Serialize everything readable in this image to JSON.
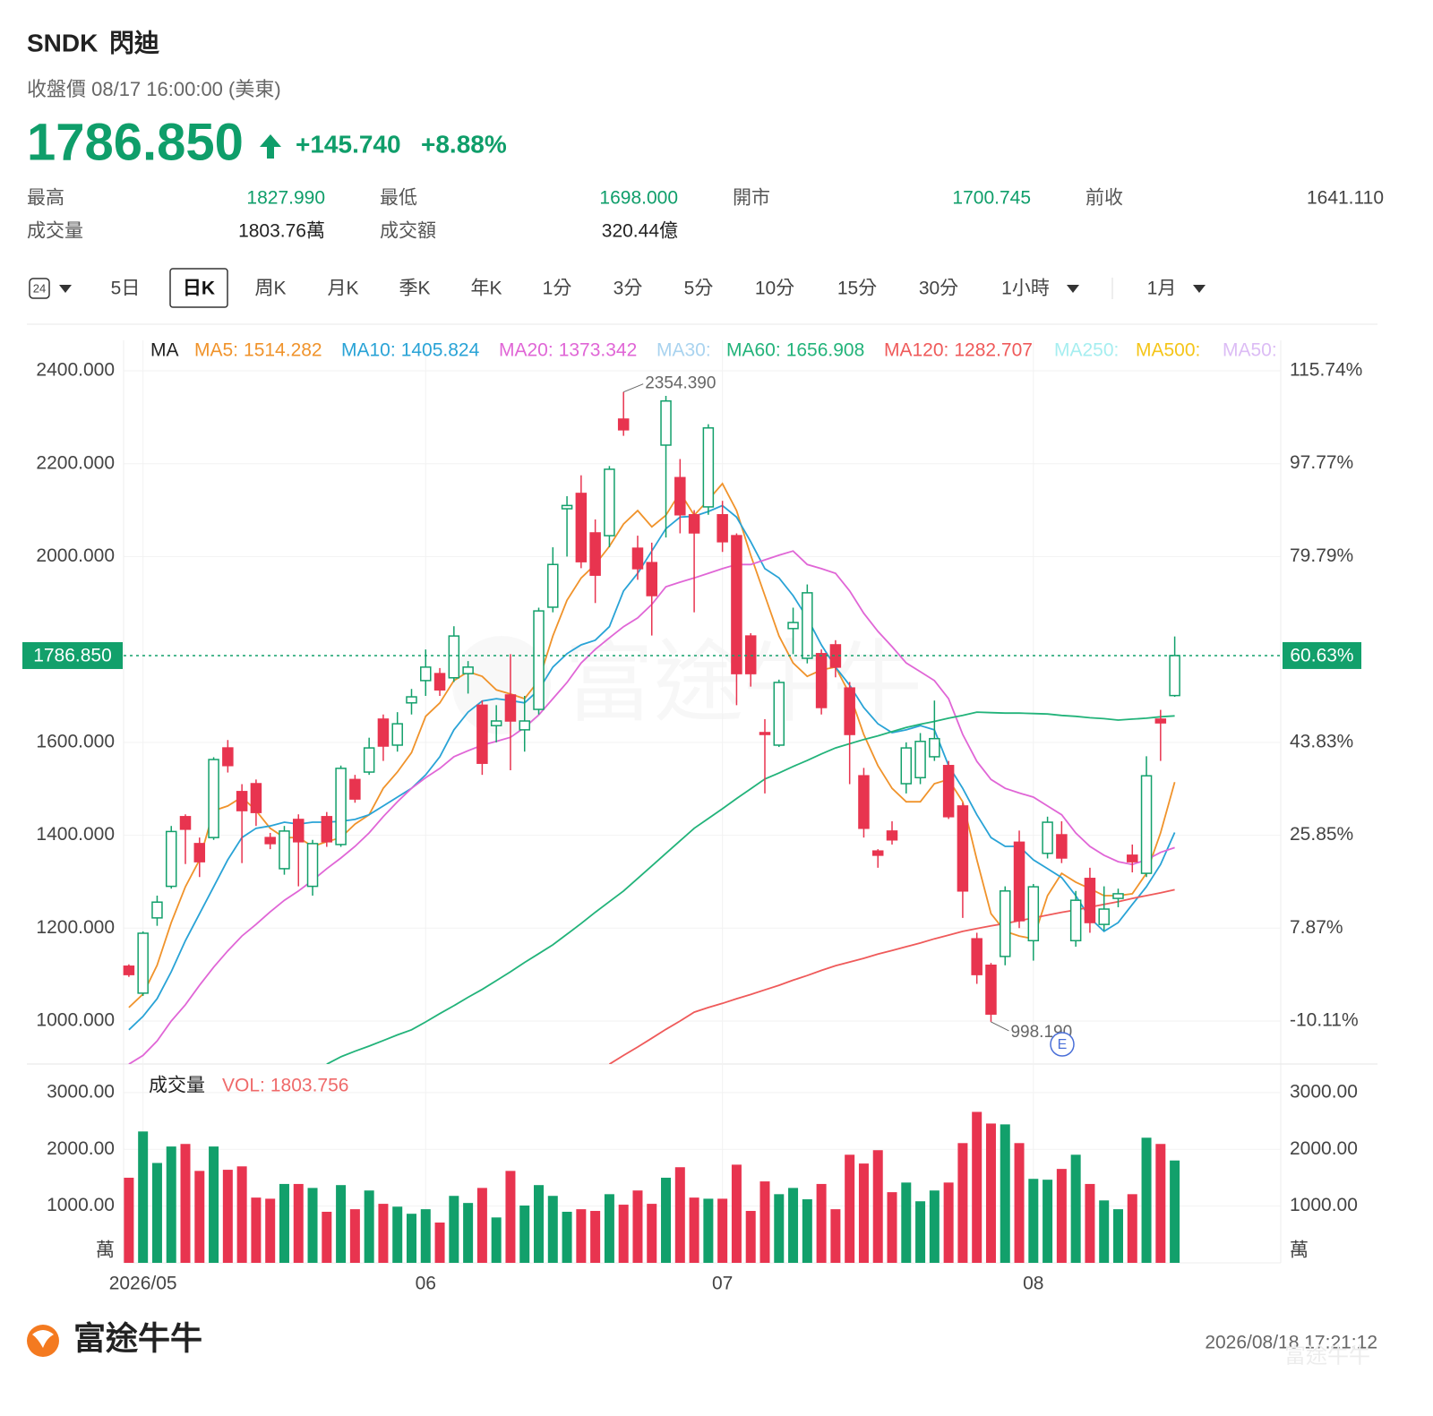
{
  "header": {
    "symbol": "SNDK",
    "name": "閃迪",
    "status": "收盤價 08/17 16:00:00 (美東)",
    "price": "1786.850",
    "change": "+145.740",
    "change_pct": "+8.88%",
    "stats": [
      {
        "label": "最高",
        "value": "1827.990"
      },
      {
        "label": "最低",
        "value": "1698.000"
      },
      {
        "label": "開市",
        "value": "1700.745"
      },
      {
        "label": "前收",
        "value": "1641.110"
      },
      {
        "label": "成交量",
        "value": "1803.76萬"
      },
      {
        "label": "成交額",
        "value": "320.44億"
      }
    ]
  },
  "tabs": {
    "items": [
      "24",
      "5日",
      "日K",
      "周K",
      "月K",
      "季K",
      "年K",
      "1分",
      "3分",
      "5分",
      "10分",
      "15分",
      "30分",
      "1小時",
      "1月"
    ],
    "active": "日K"
  },
  "watermark": "富途牛牛",
  "earnings_marker": "E",
  "footer": {
    "brand": "富途牛牛",
    "timestamp": "2026/08/18 17:21:12"
  },
  "chart_data": [
    {
      "type": "candlestick",
      "legend_title": "MA",
      "up_color": "#12a06b",
      "down_color": "#e8344f",
      "categories": [
        null,
        "2026/05",
        null,
        null,
        null,
        null,
        null,
        null,
        null,
        null,
        null,
        null,
        null,
        null,
        null,
        null,
        null,
        null,
        null,
        null,
        null,
        "06",
        null,
        null,
        null,
        null,
        null,
        null,
        null,
        null,
        null,
        null,
        null,
        null,
        null,
        null,
        null,
        null,
        null,
        null,
        null,
        null,
        "07",
        null,
        null,
        null,
        null,
        null,
        null,
        null,
        null,
        null,
        null,
        null,
        null,
        null,
        null,
        null,
        null,
        null,
        null,
        null,
        null,
        null,
        "08",
        null,
        null,
        null,
        null,
        null,
        null,
        null,
        null,
        null,
        null
      ],
      "open": [
        1118,
        1060,
        1222,
        1290,
        1440,
        1382,
        1395,
        1588,
        1494,
        1511,
        1395,
        1328,
        1434,
        1290,
        1440,
        1380,
        1520,
        1536,
        1650,
        1594,
        1685,
        1733,
        1748,
        1739,
        1748,
        1680,
        1636,
        1702,
        1627,
        1671,
        1891,
        2103,
        2136,
        2051,
        2045,
        2296,
        2018,
        1987,
        2240,
        2170,
        2090,
        2107,
        2090,
        2045,
        1829,
        1621,
        1594,
        1845,
        1781,
        1791,
        1810,
        1717,
        1528,
        1366,
        1409,
        1511,
        1524,
        1569,
        1550,
        1463,
        1177,
        1120,
        1139,
        1385,
        1173,
        1361,
        1401,
        1173,
        1307,
        1208,
        1264,
        1357,
        1318,
        1650,
        1700.745
      ],
      "high": [
        1122,
        1193,
        1270,
        1420,
        1445,
        1395,
        1568,
        1605,
        1510,
        1520,
        1405,
        1420,
        1445,
        1390,
        1450,
        1550,
        1530,
        1610,
        1660,
        1665,
        1715,
        1800,
        1760,
        1850,
        1775,
        1690,
        1680,
        1790,
        1700,
        1890,
        2020,
        2130,
        2175,
        2080,
        2195,
        2354.39,
        2045,
        2030,
        2346,
        2210,
        2100,
        2285,
        2120,
        2050,
        1835,
        1650,
        1735,
        1890,
        1940,
        1800,
        1820,
        1730,
        1545,
        1370,
        1430,
        1600,
        1620,
        1690,
        1560,
        1470,
        1190,
        1125,
        1290,
        1410,
        1295,
        1440,
        1430,
        1280,
        1330,
        1290,
        1285,
        1380,
        1570,
        1670,
        1827.99
      ],
      "low": [
        1095,
        1054,
        1205,
        1285,
        1338,
        1310,
        1390,
        1535,
        1340,
        1420,
        1370,
        1315,
        1290,
        1270,
        1375,
        1375,
        1470,
        1530,
        1560,
        1580,
        1660,
        1700,
        1700,
        1730,
        1705,
        1530,
        1600,
        1540,
        1580,
        1660,
        1880,
        2000,
        1975,
        1900,
        2020,
        2260,
        1950,
        1830,
        2041,
        2050,
        1880,
        2090,
        2010,
        1680,
        1720,
        1490,
        1590,
        1790,
        1770,
        1660,
        1740,
        1510,
        1395,
        1330,
        1380,
        1490,
        1510,
        1560,
        1435,
        1222,
        1080,
        998.19,
        1120,
        1200,
        1130,
        1350,
        1340,
        1160,
        1190,
        1195,
        1245,
        1320,
        1310,
        1560,
        1698
      ],
      "close": [
        1100,
        1189,
        1256,
        1408,
        1413,
        1343,
        1563,
        1550,
        1453,
        1449,
        1382,
        1409,
        1386,
        1382,
        1386,
        1544,
        1478,
        1588,
        1592,
        1640,
        1698,
        1762,
        1713,
        1829,
        1762,
        1555,
        1646,
        1646,
        1646,
        1883,
        1983,
        2110,
        1989,
        1960,
        2188,
        2273,
        1974,
        1916,
        2335,
        2090,
        2051,
        2277,
        2032,
        1748,
        1748,
        1617,
        1729,
        1858,
        1922,
        1675,
        1762,
        1617,
        1415,
        1357,
        1390,
        1588,
        1602,
        1608,
        1440,
        1280,
        1100,
        1015,
        1280,
        1216,
        1289,
        1428,
        1351,
        1260,
        1212,
        1241,
        1274,
        1343,
        1528,
        1642,
        1786.85
      ],
      "series": [
        {
          "name": "MA5:",
          "color": "#f0932b",
          "values": [
            1029,
            1058,
            1120,
            1212,
            1289,
            1347,
            1453,
            1463,
            1482,
            1453,
            1415,
            1395,
            1395,
            1376,
            1386,
            1395,
            1424,
            1444,
            1501,
            1536,
            1578,
            1656,
            1685,
            1733,
            1752,
            1742,
            1713,
            1704,
            1694,
            1733,
            1829,
            1906,
            1954,
            1983,
            2022,
            2070,
            2099,
            2064,
            2089,
            2138,
            2089,
            2122,
            2157,
            2099,
            2003,
            1916,
            1829,
            1771,
            1742,
            1756,
            1762,
            1704,
            1617,
            1550,
            1501,
            1472,
            1472,
            1511,
            1520,
            1472,
            1347,
            1231,
            1193,
            1183,
            1177,
            1270,
            1318,
            1299,
            1285,
            1270,
            1270,
            1274,
            1318,
            1405,
            1514.282
          ]
        },
        {
          "name": "MA10:",
          "color": "#29a3d6",
          "values": [
            981,
            1010,
            1048,
            1106,
            1173,
            1231,
            1289,
            1347,
            1395,
            1415,
            1420,
            1428,
            1424,
            1428,
            1428,
            1430,
            1434,
            1444,
            1463,
            1482,
            1501,
            1530,
            1569,
            1627,
            1665,
            1689,
            1694,
            1690,
            1685,
            1713,
            1762,
            1791,
            1810,
            1820,
            1849,
            1926,
            1964,
            2012,
            2060,
            2085,
            2087,
            2097,
            2110,
            2085,
            2032,
            1974,
            1954,
            1916,
            1868,
            1810,
            1762,
            1723,
            1675,
            1640,
            1621,
            1627,
            1636,
            1627,
            1550,
            1501,
            1444,
            1395,
            1376,
            1376,
            1347,
            1328,
            1309,
            1270,
            1222,
            1193,
            1212,
            1251,
            1289,
            1337,
            1405.824
          ]
        },
        {
          "name": "MA20:",
          "color": "#e066d6",
          "values": [
            907,
            926,
            957,
            1000,
            1035,
            1077,
            1116,
            1151,
            1183,
            1208,
            1235,
            1260,
            1280,
            1303,
            1328,
            1351,
            1376,
            1405,
            1440,
            1472,
            1501,
            1524,
            1544,
            1569,
            1582,
            1594,
            1602,
            1611,
            1632,
            1659,
            1694,
            1729,
            1771,
            1800,
            1825,
            1849,
            1868,
            1897,
            1935,
            1945,
            1954,
            1964,
            1974,
            1983,
            1983,
            1993,
            2003,
            2012,
            1983,
            1974,
            1964,
            1926,
            1878,
            1839,
            1806,
            1771,
            1752,
            1733,
            1694,
            1617,
            1559,
            1520,
            1501,
            1491,
            1482,
            1463,
            1444,
            1405,
            1376,
            1357,
            1343,
            1337,
            1347,
            1363,
            1373.342
          ]
        },
        {
          "name": "MA30:",
          "color": "#a9d3ef"
        },
        {
          "name": "MA60:",
          "color": "#22b37a",
          "values": [
            null,
            null,
            null,
            null,
            null,
            null,
            null,
            null,
            null,
            null,
            null,
            null,
            null,
            null,
            907,
            923,
            935,
            946,
            958,
            970,
            981,
            998,
            1016,
            1033,
            1051,
            1068,
            1087,
            1106,
            1126,
            1145,
            1164,
            1187,
            1210,
            1234,
            1257,
            1280,
            1307,
            1334,
            1361,
            1388,
            1415,
            1436,
            1457,
            1479,
            1500,
            1521,
            1534,
            1548,
            1561,
            1575,
            1588,
            1597,
            1606,
            1614,
            1623,
            1632,
            1639,
            1645,
            1652,
            1658,
            1665,
            1664,
            1663,
            1663,
            1662,
            1661,
            1658,
            1656,
            1653,
            1651,
            1648,
            1650,
            1652,
            1655,
            1656.908
          ]
        },
        {
          "name": "MA120:",
          "color": "#ef5a5a",
          "values": [
            null,
            null,
            null,
            null,
            null,
            null,
            null,
            null,
            null,
            null,
            null,
            null,
            null,
            null,
            null,
            null,
            null,
            null,
            null,
            null,
            null,
            null,
            null,
            null,
            null,
            null,
            null,
            null,
            null,
            null,
            null,
            null,
            null,
            null,
            907,
            926,
            944,
            963,
            982,
            1000,
            1019,
            1029,
            1038,
            1048,
            1057,
            1067,
            1077,
            1088,
            1098,
            1109,
            1119,
            1127,
            1135,
            1144,
            1152,
            1160,
            1168,
            1177,
            1185,
            1193,
            1199,
            1205,
            1210,
            1216,
            1222,
            1228,
            1234,
            1239,
            1245,
            1251,
            1257,
            1264,
            1270,
            1276,
            1282.707
          ]
        },
        {
          "name": "MA250:",
          "color": "#a6eef0"
        },
        {
          "name": "MA500:",
          "color": "#f5c518"
        },
        {
          "name": "MA50:",
          "color": "#dcbcf5"
        }
      ],
      "ylim": [
        907.4,
        2465.6
      ],
      "yticks": [
        {
          "value": 1000,
          "label": "1000.000"
        },
        {
          "value": 1200,
          "label": "1200.000"
        },
        {
          "value": 1400,
          "label": "1400.000"
        },
        {
          "value": 1600,
          "label": "1600.000"
        },
        {
          "value": 2000,
          "label": "2000.000"
        },
        {
          "value": 2200,
          "label": "2200.000"
        },
        {
          "value": 2400,
          "label": "2400.000"
        }
      ],
      "y2lim": [
        -18.43,
        121.64
      ],
      "y2ticks": [
        {
          "value": -10.11,
          "label": "-10.11%"
        },
        {
          "value": 7.87,
          "label": "7.87%"
        },
        {
          "value": 25.85,
          "label": "25.85%"
        },
        {
          "value": 43.83,
          "label": "43.83%"
        },
        {
          "value": 79.79,
          "label": "79.79%"
        },
        {
          "value": 97.77,
          "label": "97.77%"
        },
        {
          "value": 115.74,
          "label": "115.74%"
        }
      ],
      "last_price": {
        "value": 1786.85,
        "label": "1786.850"
      },
      "last_pct": {
        "value": 60.63,
        "label": "60.63%"
      },
      "high_label": {
        "value": 2354.39,
        "label": "2354.390"
      },
      "low_label": {
        "value": 998.19,
        "label": "998.190"
      },
      "grid": true
    },
    {
      "type": "bar",
      "title": "成交量",
      "name": "VOL:",
      "up_color": "#12a06b",
      "down_color": "#e8344f",
      "values": [
        1500,
        2315,
        1760,
        2050,
        2095,
        1620,
        2050,
        1640,
        1700,
        1150,
        1130,
        1390,
        1390,
        1320,
        900,
        1370,
        945,
        1275,
        1040,
        990,
        865,
        945,
        710,
        1180,
        1055,
        1320,
        800,
        1620,
        1010,
        1370,
        1180,
        900,
        945,
        915,
        1210,
        1025,
        1275,
        1040,
        1500,
        1685,
        1150,
        1130,
        1130,
        1730,
        915,
        1435,
        1210,
        1320,
        1120,
        1390,
        945,
        1905,
        1750,
        1985,
        1245,
        1415,
        1085,
        1275,
        1415,
        2110,
        2660,
        2455,
        2440,
        2110,
        1480,
        1465,
        1655,
        1905,
        1390,
        1100,
        945,
        1210,
        2205,
        2095,
        1803.756
      ],
      "ylim": [
        0,
        3472
      ],
      "yticks": [
        {
          "value": 1000,
          "label": "1000.00"
        },
        {
          "value": 2000,
          "label": "2000.00"
        },
        {
          "value": 3000,
          "label": "3000.00"
        }
      ],
      "unit": "萬",
      "grid": true
    }
  ]
}
